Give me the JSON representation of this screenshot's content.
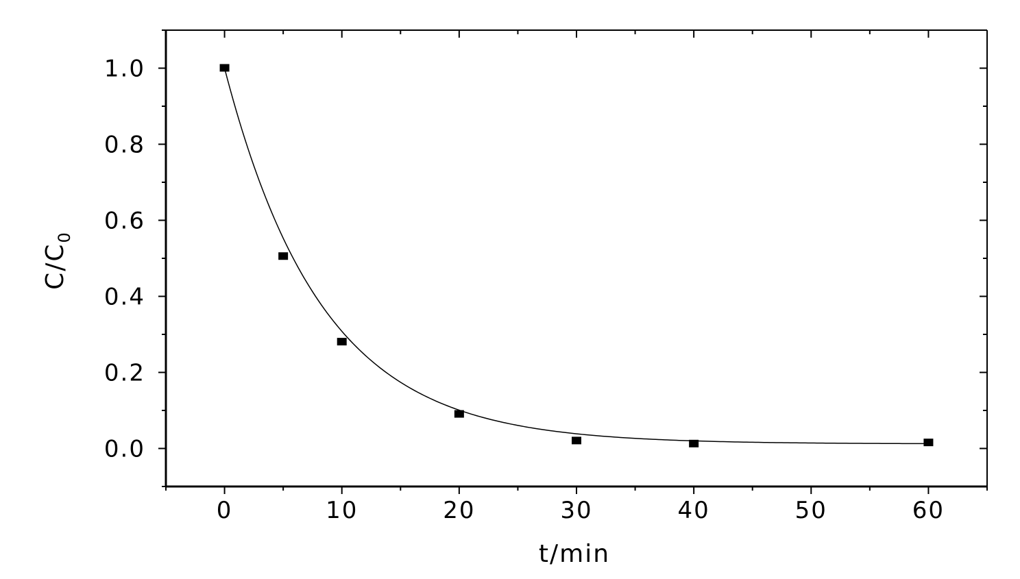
{
  "chart_data": {
    "type": "scatter",
    "title": "",
    "xlabel": "t/min",
    "ylabel_main": "C/C",
    "ylabel_sub": "0",
    "xlim": [
      -5,
      65
    ],
    "ylim": [
      -0.1,
      1.1
    ],
    "x_ticks": [
      0,
      10,
      20,
      30,
      40,
      50,
      60
    ],
    "x_tick_labels": [
      "0",
      "10",
      "20",
      "30",
      "40",
      "50",
      "60"
    ],
    "y_ticks": [
      0.0,
      0.2,
      0.4,
      0.6,
      0.8,
      1.0
    ],
    "y_tick_labels": [
      "0.0",
      "0.2",
      "0.4",
      "0.6",
      "0.8",
      "1.0"
    ],
    "grid": false,
    "legend": "none",
    "series": [
      {
        "points": [
          {
            "x": 0,
            "y": 1.0
          },
          {
            "x": 5,
            "y": 0.505
          },
          {
            "x": 10,
            "y": 0.28
          },
          {
            "x": 20,
            "y": 0.09
          },
          {
            "x": 30,
            "y": 0.02
          },
          {
            "x": 40,
            "y": 0.012
          },
          {
            "x": 60,
            "y": 0.015
          }
        ],
        "marker": "square",
        "color": "#000000"
      }
    ],
    "fit_curve": {
      "form": "y = y0 + A*exp(-x/t1)",
      "y0": 0.012,
      "A": 0.988,
      "t1": 8.3,
      "color": "#000000"
    }
  }
}
